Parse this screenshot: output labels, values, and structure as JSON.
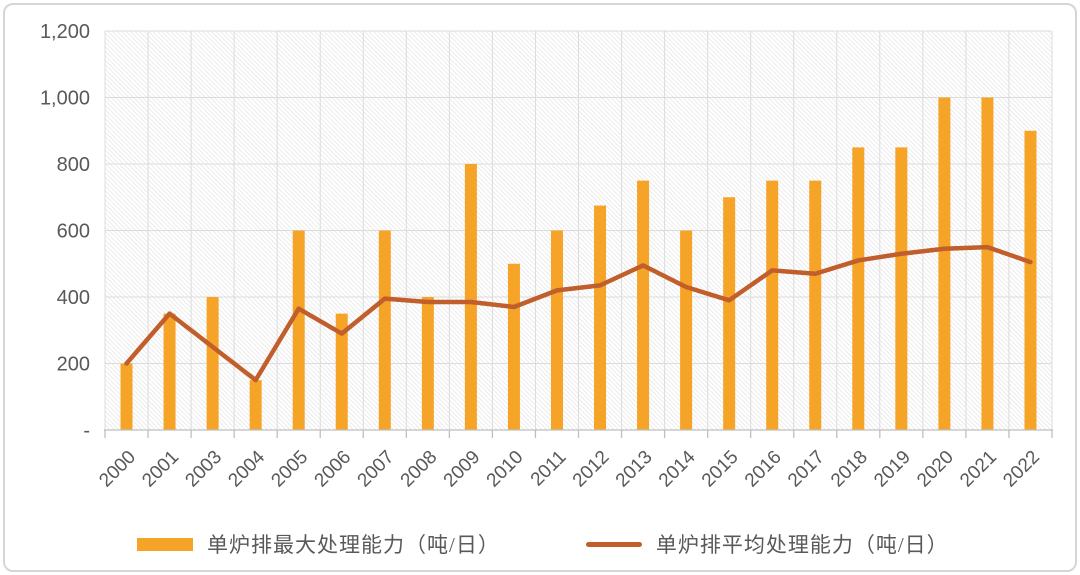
{
  "chart_data": {
    "type": "bar",
    "subtype": "bar+line combo",
    "title": "",
    "xlabel": "",
    "ylabel": "",
    "categories": [
      "2000",
      "2001",
      "2003",
      "2004",
      "2005",
      "2006",
      "2007",
      "2008",
      "2009",
      "2010",
      "2011",
      "2012",
      "2013",
      "2014",
      "2015",
      "2016",
      "2017",
      "2018",
      "2019",
      "2020",
      "2021",
      "2022"
    ],
    "series": [
      {
        "name": "单炉排最大处理能力（吨/日）",
        "type": "bar",
        "color": "#F5A428",
        "values": [
          200,
          350,
          400,
          150,
          600,
          350,
          600,
          400,
          800,
          500,
          600,
          675,
          750,
          600,
          700,
          750,
          750,
          850,
          850,
          1000,
          1000,
          900
        ]
      },
      {
        "name": "单炉排平均处理能力（吨/日）",
        "type": "line",
        "color": "#C05E2C",
        "values": [
          200,
          350,
          250,
          150,
          365,
          290,
          395,
          385,
          385,
          370,
          420,
          435,
          495,
          430,
          390,
          480,
          470,
          510,
          530,
          545,
          550,
          505
        ]
      }
    ],
    "y_axis": {
      "min": 0,
      "max": 1200,
      "step": 200,
      "ticks": [
        {
          "value": 0,
          "label": "-"
        },
        {
          "value": 200,
          "label": "200"
        },
        {
          "value": 400,
          "label": "400"
        },
        {
          "value": 600,
          "label": "600"
        },
        {
          "value": 800,
          "label": "800"
        },
        {
          "value": 1000,
          "label": "1,000"
        },
        {
          "value": 1200,
          "label": "1,200"
        }
      ]
    },
    "legend_position": "bottom",
    "grid": true,
    "plot_background": "diagonal-hatch"
  },
  "styles": {
    "axis_label_color": "#595959",
    "gridline_color": "#dcdcdc",
    "axis_line_color": "#bfbfbf",
    "hatch_color": "#e9e9e9",
    "background_color": "#ffffff"
  }
}
